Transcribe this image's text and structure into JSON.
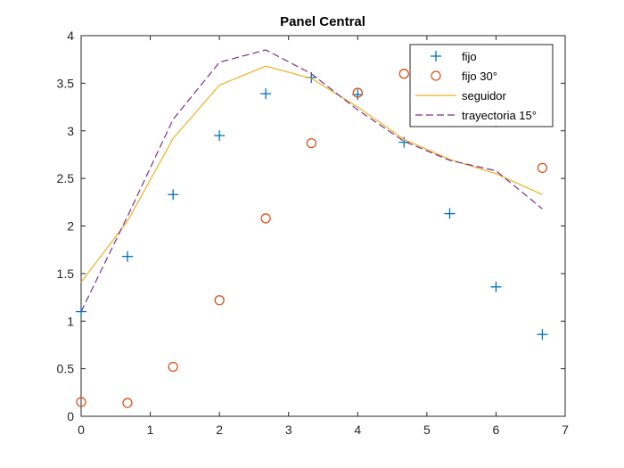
{
  "chart_data": {
    "type": "line",
    "title": "Panel Central",
    "xlabel": "",
    "ylabel": "",
    "xlim": [
      0,
      7
    ],
    "ylim": [
      0,
      4
    ],
    "xticks": [
      0,
      1,
      2,
      3,
      4,
      5,
      6,
      7
    ],
    "yticks": [
      0,
      0.5,
      1,
      1.5,
      2,
      2.5,
      3,
      3.5,
      4
    ],
    "ytick_labels": [
      "0",
      "0.5",
      "1",
      "1.5",
      "2",
      "2.5",
      "3",
      "3.5",
      "4"
    ],
    "grid": false,
    "legend_position": "top-right",
    "series": [
      {
        "name": "fijo",
        "style": "marker-plus",
        "color": "#0072BD",
        "x": [
          0,
          0.67,
          1.33,
          2.0,
          2.67,
          3.33,
          4.0,
          4.67,
          5.33,
          6.0,
          6.67
        ],
        "y": [
          1.1,
          1.68,
          2.33,
          2.95,
          3.39,
          3.56,
          3.38,
          2.88,
          2.13,
          1.36,
          0.86
        ]
      },
      {
        "name": "fijo 30°",
        "style": "marker-circle",
        "color": "#D95319",
        "x": [
          0,
          0.67,
          1.33,
          2.0,
          2.67,
          3.33,
          4.0,
          4.67,
          5.33,
          6.0,
          6.67
        ],
        "y": [
          0.15,
          0.14,
          0.52,
          1.22,
          2.08,
          2.87,
          3.4,
          3.6,
          3.48,
          3.09,
          2.61
        ]
      },
      {
        "name": "seguidor",
        "style": "solid",
        "color": "#EDB120",
        "x": [
          0,
          0.67,
          1.33,
          2.0,
          2.67,
          3.33,
          4.0,
          4.67,
          5.33,
          6.0,
          6.67
        ],
        "y": [
          1.41,
          2.05,
          2.92,
          3.48,
          3.68,
          3.55,
          3.25,
          2.91,
          2.7,
          2.55,
          2.33
        ]
      },
      {
        "name": "trayectoria 15°",
        "style": "dashed",
        "color": "#7E2F8E",
        "x": [
          0,
          0.67,
          1.33,
          2.0,
          2.67,
          3.33,
          4.0,
          4.67,
          5.33,
          6.0,
          6.67
        ],
        "y": [
          1.1,
          2.1,
          3.12,
          3.72,
          3.85,
          3.6,
          3.22,
          2.89,
          2.69,
          2.58,
          2.18
        ]
      }
    ]
  }
}
